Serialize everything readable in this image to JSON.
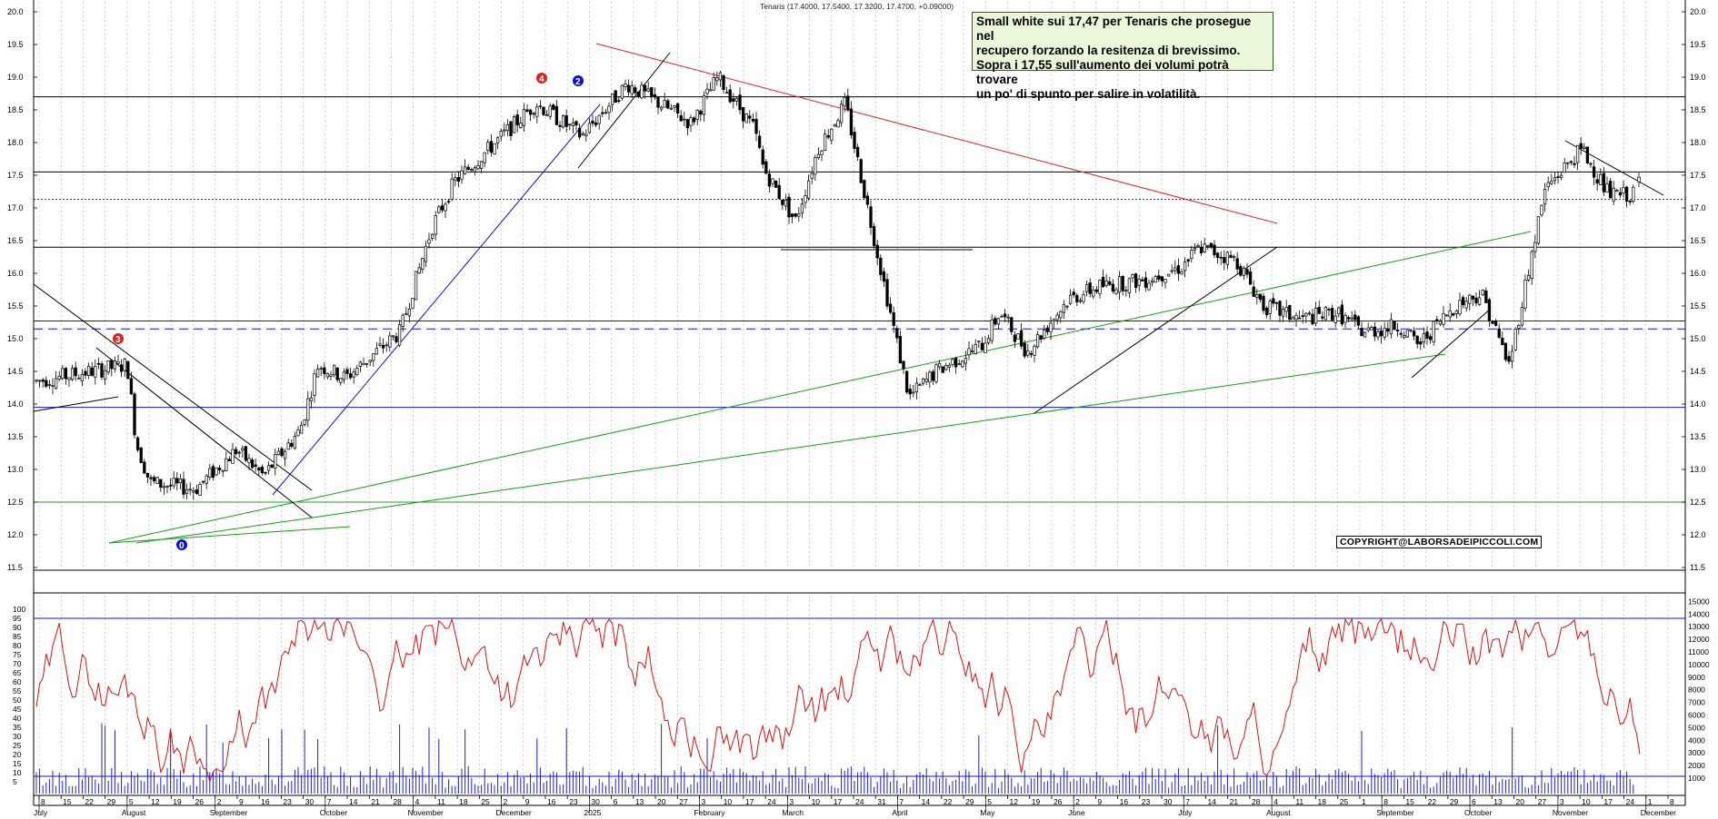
{
  "header": {
    "title": "Tenaris (17.4000, 17.5400, 17.3200, 17.4700, +0.09000)"
  },
  "annotation": {
    "lines": [
      "Small white sui 17,47 per Tenaris che prosegue nel",
      "recupero  forzando la resitenza di brevissimo.",
      "Sopra i 17,55 sull'aumento dei volumi potrà trovare",
      "un po' di spunto per salire in volatilità."
    ]
  },
  "copyright": "COPYRIGHT@LABORSADEIPICCOLI.COM",
  "colors": {
    "candle": "#000000",
    "oscillator": "#e01010",
    "volume": "#2020d0",
    "support": "#0000cc",
    "trend_red": "#e02020",
    "trend_green": "#10a010",
    "note_bg": "#e8f8d8"
  },
  "chart_data": {
    "type": "candlestick",
    "price_axis": {
      "min": 11.5,
      "max": 20.0,
      "ticks": [
        "11.5",
        "12.0",
        "12.5",
        "13.0",
        "13.5",
        "14.0",
        "14.5",
        "15.0",
        "15.5",
        "16.0",
        "16.5",
        "17.0",
        "17.5",
        "18.0",
        "18.5",
        "19.0",
        "19.5",
        "20.0"
      ]
    },
    "oscillator_axis": {
      "min": 0,
      "max": 100,
      "ticks": [
        "5",
        "10",
        "15",
        "20",
        "25",
        "30",
        "35",
        "40",
        "45",
        "50",
        "55",
        "60",
        "65",
        "70",
        "75",
        "80",
        "85",
        "90",
        "95",
        "100"
      ]
    },
    "volume_axis": {
      "ticks": [
        "1000",
        "2000",
        "3000",
        "4000",
        "5000",
        "6000",
        "7000",
        "8000",
        "9000",
        "10000",
        "11000",
        "12000",
        "13000",
        "14000",
        "15000"
      ]
    },
    "x_ticks": [
      "8",
      "15",
      "22",
      "29",
      "5",
      "12",
      "19",
      "26",
      "2",
      "9",
      "16",
      "23",
      "30",
      "7",
      "14",
      "21",
      "28",
      "4",
      "11",
      "18",
      "25",
      "2",
      "9",
      "16",
      "23",
      "30",
      "6",
      "13",
      "20",
      "27",
      "3",
      "10",
      "17",
      "24",
      "3",
      "10",
      "17",
      "24",
      "31",
      "7",
      "14",
      "22",
      "29",
      "5",
      "12",
      "19",
      "26",
      "2",
      "9",
      "16",
      "23",
      "30",
      "7",
      "14",
      "21",
      "28",
      "4",
      "11",
      "18",
      "25",
      "1",
      "8",
      "15",
      "22",
      "29",
      "6",
      "13",
      "20",
      "27",
      "3",
      "10",
      "17",
      "24",
      "1",
      "8"
    ],
    "month_labels": [
      "July",
      "August",
      "September",
      "October",
      "November",
      "December",
      "2025",
      "February",
      "March",
      "April",
      "May",
      "June",
      "July",
      "August",
      "September",
      "October",
      "November",
      "December"
    ],
    "horizontal_levels": [
      {
        "value": 18.7,
        "style": "solid",
        "color": "black"
      },
      {
        "value": 17.55,
        "style": "solid",
        "color": "black"
      },
      {
        "value": 17.13,
        "style": "dotted",
        "color": "blue"
      },
      {
        "value": 16.4,
        "style": "solid",
        "color": "black"
      },
      {
        "value": 15.27,
        "style": "solid",
        "color": "blue"
      },
      {
        "value": 15.15,
        "style": "dashed",
        "color": "blue"
      },
      {
        "value": 13.95,
        "style": "solid",
        "color": "blue"
      },
      {
        "value": 12.5,
        "style": "solid",
        "color": "green"
      }
    ],
    "markers": [
      "0",
      "3",
      "4",
      "2"
    ],
    "last": {
      "open": 17.4,
      "high": 17.54,
      "low": 17.32,
      "close": 17.47
    }
  }
}
